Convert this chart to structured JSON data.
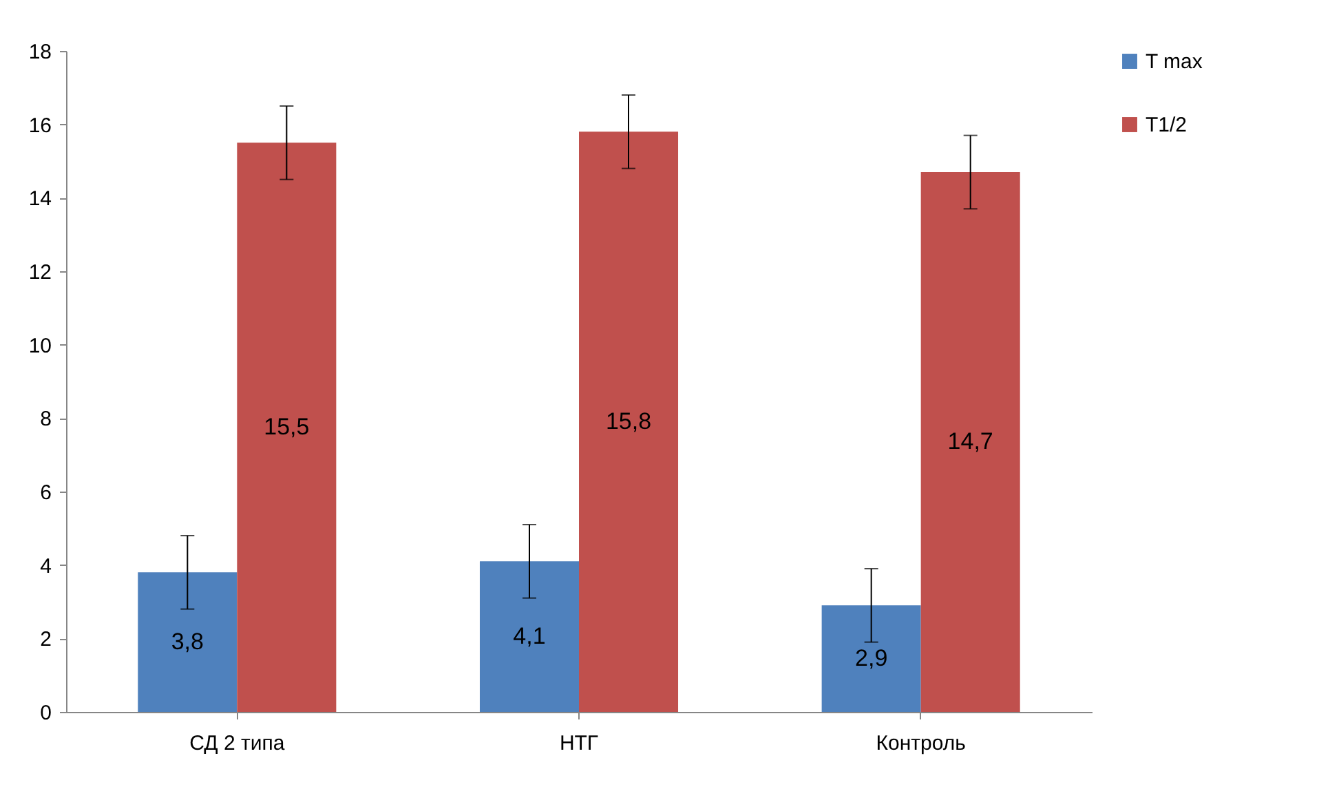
{
  "chart_data": {
    "type": "bar",
    "categories": [
      "СД 2 типа",
      "НТГ",
      "Контроль"
    ],
    "series": [
      {
        "name": "T max",
        "color": "#4f81bd",
        "values": [
          3.8,
          4.1,
          2.9
        ],
        "errors": [
          1,
          1,
          1
        ],
        "value_labels": [
          "3,8",
          "4,1",
          "2,9"
        ]
      },
      {
        "name": "T1/2",
        "color": "#c0504d",
        "values": [
          15.5,
          15.8,
          14.7
        ],
        "errors": [
          1,
          1,
          1
        ],
        "value_labels": [
          "15,5",
          "15,8",
          "14,7"
        ]
      }
    ],
    "ylim": [
      0,
      18
    ],
    "yticks": [
      0,
      2,
      4,
      6,
      8,
      10,
      12,
      14,
      16,
      18
    ],
    "legend": "right"
  }
}
